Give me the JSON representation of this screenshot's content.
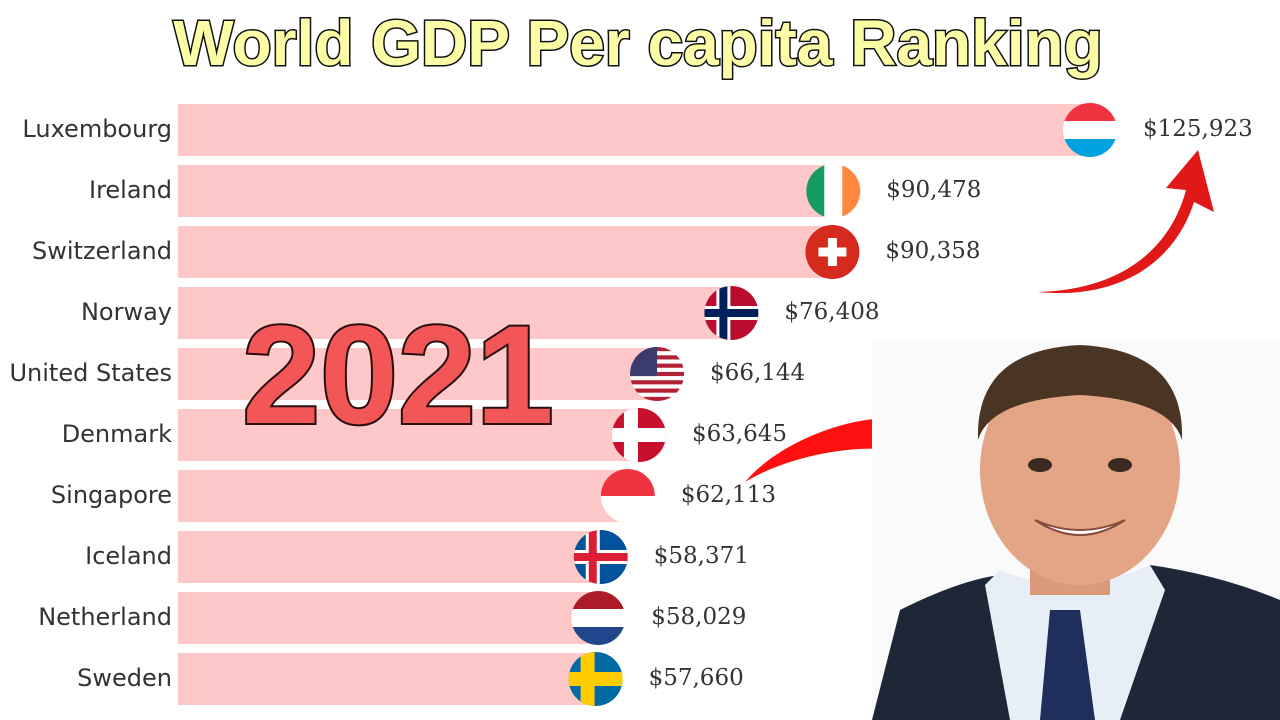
{
  "chart_data": {
    "type": "bar",
    "orientation": "horizontal",
    "title": "World GDP Per capita Ranking",
    "annotation": "2021",
    "categories": [
      "Luxembourg",
      "Ireland",
      "Switzerland",
      "Norway",
      "United States",
      "Denmark",
      "Singapore",
      "Iceland",
      "Netherland",
      "Sweden"
    ],
    "values": [
      125923,
      90478,
      90358,
      76408,
      66144,
      63645,
      62113,
      58371,
      58029,
      57660
    ],
    "value_labels": [
      "$125,923",
      "$90,478",
      "$90,358",
      "$76,408",
      "$66,144",
      "$63,645",
      "$62,113",
      "$58,371",
      "$58,029",
      "$57,660"
    ],
    "color": "#ffc8c8"
  }
}
